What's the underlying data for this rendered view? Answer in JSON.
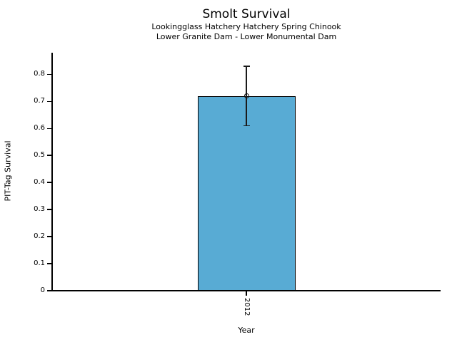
{
  "figure": {
    "background": "#ffffff"
  },
  "chart_data": {
    "type": "bar",
    "title": "Smolt Survival",
    "subtitle_line1": "Lookingglass Hatchery Hatchery Spring Chinook",
    "subtitle_line2": "Lower Granite Dam - Lower Monumental Dam",
    "xlabel": "Year",
    "ylabel": "PIT-Tag Survival",
    "categories": [
      "2012"
    ],
    "series": [
      {
        "name": "PIT-Tag Survival",
        "values": [
          0.72
        ],
        "error_low": [
          0.61
        ],
        "error_high": [
          0.83
        ]
      }
    ],
    "ylim": [
      0,
      0.88
    ],
    "yticks": [
      0,
      0.1,
      0.2,
      0.3,
      0.4,
      0.5,
      0.6,
      0.7,
      0.8
    ],
    "ytick_labels": [
      "0",
      "0.1",
      "0.2",
      "0.3",
      "0.4",
      "0.5",
      "0.6",
      "0.7",
      "0.8"
    ],
    "grid": false,
    "legend": "none",
    "marker": "open-circle",
    "colors": {
      "bar_fill": "#58ABD4",
      "bar_edge": "#000000",
      "error_bar": "#1a1a1a",
      "text": "#000000"
    }
  }
}
